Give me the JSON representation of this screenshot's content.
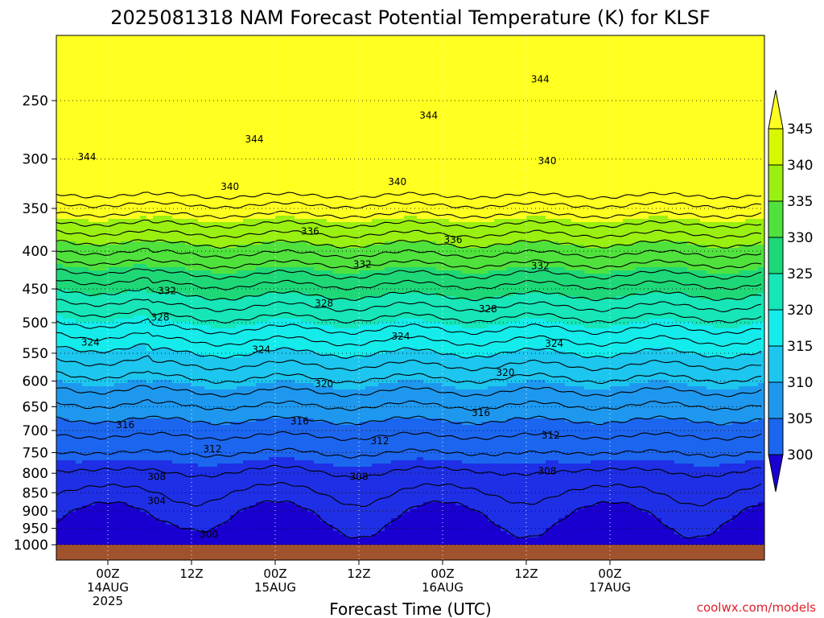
{
  "chart_data": {
    "type": "heatmap",
    "title": "2025081318 NAM Forecast Potential Temperature (K) for KLSF",
    "xlabel": "Forecast Time (UTC)",
    "ylabel": "",
    "y_scale": "log",
    "y_direction": "pressure decreasing upward",
    "ylim": [
      1000,
      200
    ],
    "y_ticks": [
      250,
      300,
      350,
      400,
      450,
      500,
      550,
      600,
      650,
      700,
      750,
      800,
      850,
      900,
      950,
      1000
    ],
    "x_ticks": [
      {
        "t": 6,
        "line1": "00Z",
        "line2": "14AUG",
        "line3": "2025"
      },
      {
        "t": 18,
        "line1": "12Z",
        "line2": "",
        "line3": ""
      },
      {
        "t": 30,
        "line1": "00Z",
        "line2": "15AUG",
        "line3": ""
      },
      {
        "t": 42,
        "line1": "12Z",
        "line2": "",
        "line3": ""
      },
      {
        "t": 54,
        "line1": "00Z",
        "line2": "16AUG",
        "line3": ""
      },
      {
        "t": 66,
        "line1": "12Z",
        "line2": "",
        "line3": ""
      },
      {
        "t": 78,
        "line1": "00Z",
        "line2": "17AUG",
        "line3": ""
      }
    ],
    "xlim": [
      0,
      84
    ],
    "grid": true,
    "colorbar": {
      "levels": [
        300,
        305,
        310,
        315,
        320,
        325,
        330,
        335,
        340,
        345
      ],
      "colors": [
        "#1a00d0",
        "#1f2fe6",
        "#1c66ef",
        "#1e98ee",
        "#1cc6ee",
        "#14ecec",
        "#16e6b8",
        "#1ed878",
        "#50e23c",
        "#9af010",
        "#d8f800",
        "#ffff20"
      ],
      "extend": "both"
    },
    "contour_interval": 2,
    "contour_labels": [
      {
        "value": 344,
        "t": 3,
        "p": 298
      },
      {
        "value": 344,
        "t": 27,
        "p": 282
      },
      {
        "value": 344,
        "t": 52,
        "p": 262
      },
      {
        "value": 344,
        "t": 68,
        "p": 234
      },
      {
        "value": 340,
        "t": 23.5,
        "p": 327
      },
      {
        "value": 340,
        "t": 47.5,
        "p": 322
      },
      {
        "value": 340,
        "t": 69,
        "p": 302
      },
      {
        "value": 336,
        "t": 35,
        "p": 376
      },
      {
        "value": 336,
        "t": 55.5,
        "p": 386
      },
      {
        "value": 332,
        "t": 14.5,
        "p": 453
      },
      {
        "value": 332,
        "t": 42.5,
        "p": 417
      },
      {
        "value": 332,
        "t": 68,
        "p": 419
      },
      {
        "value": 328,
        "t": 13.5,
        "p": 492
      },
      {
        "value": 328,
        "t": 37,
        "p": 471
      },
      {
        "value": 328,
        "t": 60.5,
        "p": 479
      },
      {
        "value": 324,
        "t": 3.5,
        "p": 532
      },
      {
        "value": 324,
        "t": 28,
        "p": 544
      },
      {
        "value": 324,
        "t": 48,
        "p": 522
      },
      {
        "value": 324,
        "t": 70,
        "p": 534
      },
      {
        "value": 320,
        "t": 37,
        "p": 605
      },
      {
        "value": 320,
        "t": 63,
        "p": 584
      },
      {
        "value": 316,
        "t": 8.5,
        "p": 688
      },
      {
        "value": 316,
        "t": 33.5,
        "p": 680
      },
      {
        "value": 316,
        "t": 59.5,
        "p": 662
      },
      {
        "value": 312,
        "t": 21,
        "p": 742
      },
      {
        "value": 312,
        "t": 45,
        "p": 723
      },
      {
        "value": 312,
        "t": 69.5,
        "p": 711
      },
      {
        "value": 308,
        "t": 13,
        "p": 809
      },
      {
        "value": 308,
        "t": 42,
        "p": 809
      },
      {
        "value": 308,
        "t": 69,
        "p": 795
      },
      {
        "value": 304,
        "t": 13,
        "p": 872
      },
      {
        "value": 300,
        "t": 20.5,
        "p": 968
      }
    ],
    "surface": "below ~985 hPa (terrain)"
  },
  "credit": "coolwx.com/models"
}
